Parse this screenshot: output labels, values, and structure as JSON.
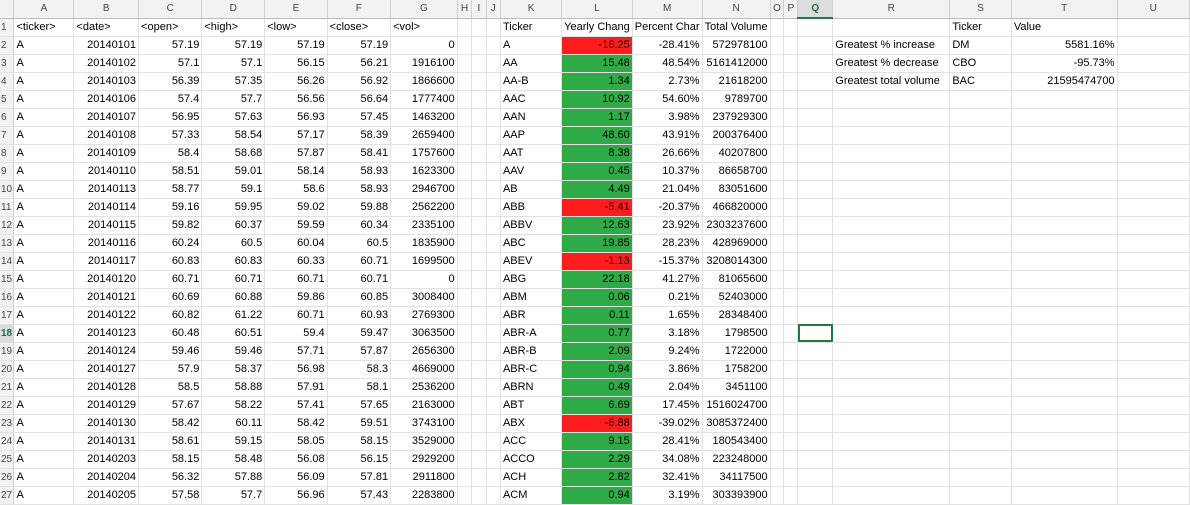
{
  "columns": [
    "A",
    "B",
    "C",
    "D",
    "E",
    "F",
    "G",
    "H",
    "I",
    "J",
    "K",
    "L",
    "M",
    "N",
    "O",
    "P",
    "Q",
    "R",
    "S",
    "T",
    "U"
  ],
  "selected_column": "Q",
  "selected_row": 18,
  "row_numbers": [
    "1",
    "2",
    "3",
    "4",
    "5",
    "6",
    "7",
    "8",
    "9",
    "10",
    "11",
    "12",
    "13",
    "14",
    "15",
    "16",
    "17",
    "18",
    "19",
    "20",
    "21",
    "22",
    "23",
    "24",
    "25",
    "26",
    "27"
  ],
  "raw_headers": [
    "<ticker>",
    "<date>",
    "<open>",
    "<high>",
    "<low>",
    "<close>",
    "<vol>"
  ],
  "raw_rows": [
    [
      "A",
      "20140101",
      "57.19",
      "57.19",
      "57.19",
      "57.19",
      "0"
    ],
    [
      "A",
      "20140102",
      "57.1",
      "57.1",
      "56.15",
      "56.21",
      "1916100"
    ],
    [
      "A",
      "20140103",
      "56.39",
      "57.35",
      "56.26",
      "56.92",
      "1866600"
    ],
    [
      "A",
      "20140106",
      "57.4",
      "57.7",
      "56.56",
      "56.64",
      "1777400"
    ],
    [
      "A",
      "20140107",
      "56.95",
      "57.63",
      "56.93",
      "57.45",
      "1463200"
    ],
    [
      "A",
      "20140108",
      "57.33",
      "58.54",
      "57.17",
      "58.39",
      "2659400"
    ],
    [
      "A",
      "20140109",
      "58.4",
      "58.68",
      "57.87",
      "58.41",
      "1757600"
    ],
    [
      "A",
      "20140110",
      "58.51",
      "59.01",
      "58.14",
      "58.93",
      "1623300"
    ],
    [
      "A",
      "20140113",
      "58.77",
      "59.1",
      "58.6",
      "58.93",
      "2946700"
    ],
    [
      "A",
      "20140114",
      "59.16",
      "59.95",
      "59.02",
      "59.88",
      "2562200"
    ],
    [
      "A",
      "20140115",
      "59.82",
      "60.37",
      "59.59",
      "60.34",
      "2335100"
    ],
    [
      "A",
      "20140116",
      "60.24",
      "60.5",
      "60.04",
      "60.5",
      "1835900"
    ],
    [
      "A",
      "20140117",
      "60.83",
      "60.83",
      "60.33",
      "60.71",
      "1699500"
    ],
    [
      "A",
      "20140120",
      "60.71",
      "60.71",
      "60.71",
      "60.71",
      "0"
    ],
    [
      "A",
      "20140121",
      "60.69",
      "60.88",
      "59.86",
      "60.85",
      "3008400"
    ],
    [
      "A",
      "20140122",
      "60.82",
      "61.22",
      "60.71",
      "60.93",
      "2769300"
    ],
    [
      "A",
      "20140123",
      "60.48",
      "60.51",
      "59.4",
      "59.47",
      "3063500"
    ],
    [
      "A",
      "20140124",
      "59.46",
      "59.46",
      "57.71",
      "57.87",
      "2656300"
    ],
    [
      "A",
      "20140127",
      "57.9",
      "58.37",
      "56.98",
      "58.3",
      "4669000"
    ],
    [
      "A",
      "20140128",
      "58.5",
      "58.88",
      "57.91",
      "58.1",
      "2536200"
    ],
    [
      "A",
      "20140129",
      "57.67",
      "58.22",
      "57.41",
      "57.65",
      "2163000"
    ],
    [
      "A",
      "20140130",
      "58.42",
      "60.11",
      "58.42",
      "59.51",
      "3743100"
    ],
    [
      "A",
      "20140131",
      "58.61",
      "59.15",
      "58.05",
      "58.15",
      "3529000"
    ],
    [
      "A",
      "20140203",
      "58.15",
      "58.48",
      "56.08",
      "56.15",
      "2929200"
    ],
    [
      "A",
      "20140204",
      "56.32",
      "57.88",
      "56.09",
      "57.81",
      "2911800"
    ],
    [
      "A",
      "20140205",
      "57.58",
      "57.7",
      "56.96",
      "57.43",
      "2283800"
    ]
  ],
  "summary_headers": [
    "Ticker",
    "Yearly Chang",
    "Percent Char",
    "Total Volume"
  ],
  "summary_rows": [
    [
      "A",
      "-16.25",
      "-28.41%",
      "572978100"
    ],
    [
      "AA",
      "15.48",
      "48.54%",
      "5161412000"
    ],
    [
      "AA-B",
      "1.34",
      "2.73%",
      "21618200"
    ],
    [
      "AAC",
      "10.92",
      "54.60%",
      "9789700"
    ],
    [
      "AAN",
      "1.17",
      "3.98%",
      "237929300"
    ],
    [
      "AAP",
      "48.60",
      "43.91%",
      "200376400"
    ],
    [
      "AAT",
      "8.38",
      "26.66%",
      "40207800"
    ],
    [
      "AAV",
      "0.45",
      "10.37%",
      "86658700"
    ],
    [
      "AB",
      "4.49",
      "21.04%",
      "83051600"
    ],
    [
      "ABB",
      "-5.41",
      "-20.37%",
      "466820000"
    ],
    [
      "ABBV",
      "12.63",
      "23.92%",
      "2303237600"
    ],
    [
      "ABC",
      "19.85",
      "28.23%",
      "428969000"
    ],
    [
      "ABEV",
      "-1.13",
      "-15.37%",
      "3208014300"
    ],
    [
      "ABG",
      "22.18",
      "41.27%",
      "81065600"
    ],
    [
      "ABM",
      "0.06",
      "0.21%",
      "52403000"
    ],
    [
      "ABR",
      "0.11",
      "1.65%",
      "28348400"
    ],
    [
      "ABR-A",
      "0.77",
      "3.18%",
      "1798500"
    ],
    [
      "ABR-B",
      "2.09",
      "9.24%",
      "1722000"
    ],
    [
      "ABR-C",
      "0.94",
      "3.86%",
      "1758200"
    ],
    [
      "ABRN",
      "0.49",
      "2.04%",
      "3451100"
    ],
    [
      "ABT",
      "6.69",
      "17.45%",
      "1516024700"
    ],
    [
      "ABX",
      "-6.88",
      "-39.02%",
      "3085372400"
    ],
    [
      "ACC",
      "9.15",
      "28.41%",
      "180543400"
    ],
    [
      "ACCO",
      "2.29",
      "34.08%",
      "223248000"
    ],
    [
      "ACH",
      "2.82",
      "32.41%",
      "34117500"
    ],
    [
      "ACM",
      "0.94",
      "3.19%",
      "303393900"
    ]
  ],
  "greatest_headers": [
    "Ticker",
    "Value"
  ],
  "greatest_rows": [
    [
      "Greatest % increase",
      "DM",
      "5581.16%"
    ],
    [
      "Greatest % decrease",
      "CBO",
      "-95.73%"
    ],
    [
      "Greatest total volume",
      "BAC",
      "21595474700"
    ]
  ],
  "colors": {
    "positive_fill": "#2eab46",
    "negative_fill": "#ff1c1c",
    "selection": "#1f7a43"
  }
}
